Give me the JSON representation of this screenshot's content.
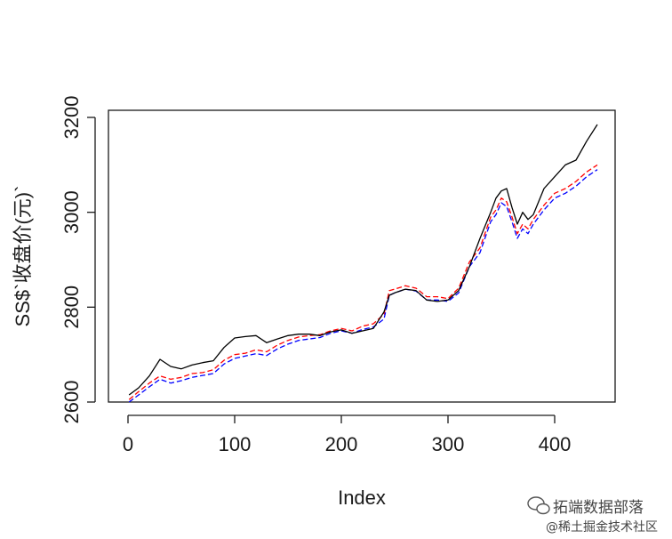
{
  "chart_data": {
    "type": "line",
    "title": "",
    "xlabel": "Index",
    "ylabel": "SS$`收盘价(元)`",
    "xlim": [
      0,
      440
    ],
    "ylim": [
      2600,
      3200
    ],
    "x_ticks": [
      0,
      100,
      200,
      300,
      400
    ],
    "y_ticks": [
      2600,
      2800,
      3000,
      3200
    ],
    "grid": false,
    "legend": "none",
    "x": [
      1,
      10,
      20,
      30,
      40,
      50,
      60,
      70,
      80,
      90,
      100,
      110,
      120,
      130,
      140,
      150,
      160,
      170,
      180,
      190,
      200,
      210,
      220,
      230,
      240,
      245,
      250,
      260,
      270,
      280,
      290,
      300,
      310,
      320,
      330,
      340,
      345,
      350,
      355,
      360,
      365,
      370,
      375,
      380,
      390,
      400,
      410,
      420,
      430,
      440
    ],
    "series": [
      {
        "color": "#000000",
        "dash": "solid",
        "values": [
          2615,
          2630,
          2655,
          2690,
          2675,
          2670,
          2678,
          2683,
          2687,
          2715,
          2735,
          2738,
          2740,
          2725,
          2733,
          2740,
          2743,
          2743,
          2740,
          2748,
          2752,
          2745,
          2750,
          2755,
          2790,
          2825,
          2830,
          2838,
          2835,
          2815,
          2812,
          2815,
          2835,
          2885,
          2945,
          3000,
          3030,
          3045,
          3050,
          3010,
          2975,
          3000,
          2985,
          2995,
          3050,
          3075,
          3100,
          3110,
          3150,
          3185
        ]
      },
      {
        "color": "#ff0000",
        "dash": "dashed",
        "values": [
          2605,
          2622,
          2640,
          2655,
          2648,
          2652,
          2660,
          2662,
          2668,
          2688,
          2700,
          2703,
          2710,
          2706,
          2720,
          2730,
          2737,
          2740,
          2742,
          2750,
          2755,
          2750,
          2760,
          2765,
          2785,
          2835,
          2838,
          2845,
          2840,
          2822,
          2822,
          2818,
          2840,
          2895,
          2925,
          2990,
          3005,
          3030,
          3022,
          2990,
          2955,
          2975,
          2965,
          2985,
          3015,
          3040,
          3050,
          3065,
          3085,
          3100
        ]
      },
      {
        "color": "#0000ff",
        "dash": "dashed",
        "values": [
          2600,
          2615,
          2632,
          2648,
          2640,
          2645,
          2652,
          2656,
          2660,
          2680,
          2692,
          2697,
          2702,
          2698,
          2712,
          2722,
          2730,
          2733,
          2736,
          2745,
          2750,
          2745,
          2753,
          2758,
          2775,
          2825,
          2830,
          2838,
          2834,
          2815,
          2815,
          2812,
          2830,
          2885,
          2915,
          2980,
          2995,
          3020,
          3012,
          2980,
          2945,
          2965,
          2955,
          2975,
          3005,
          3030,
          3040,
          3055,
          3075,
          3090
        ]
      }
    ]
  },
  "watermark": {
    "line1": "拓端数据部落",
    "line2": "@稀土掘金技术社区"
  }
}
